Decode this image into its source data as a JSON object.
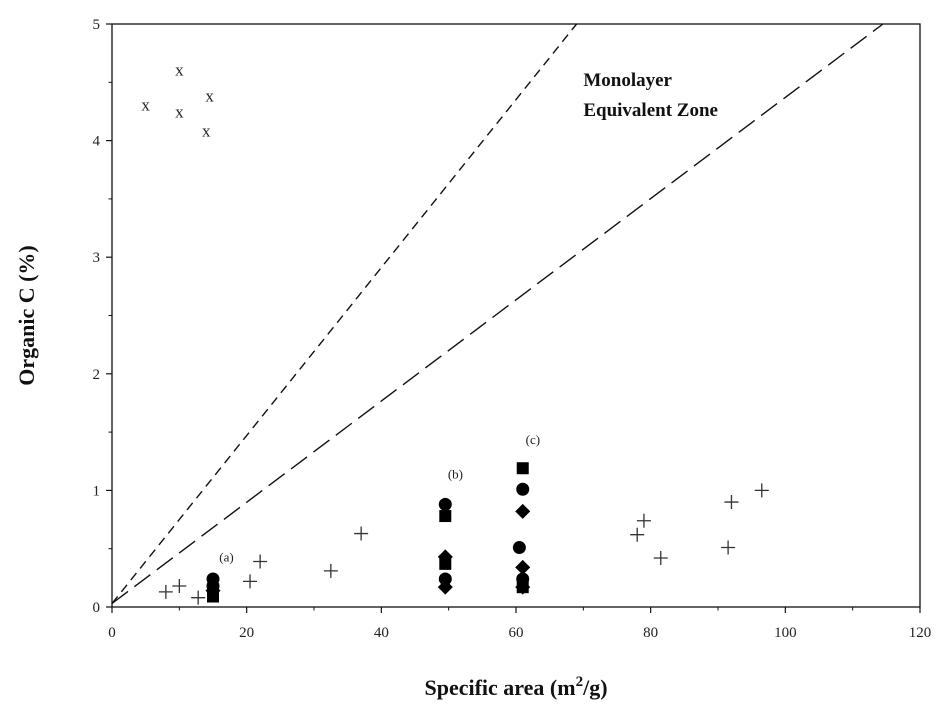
{
  "chart_data": {
    "type": "scatter",
    "title": "",
    "xlabel": "Specific area (m",
    "xlabel_sup": "2",
    "xlabel_tail": "/g)",
    "ylabel": "Organic C (%)",
    "xlim": [
      0,
      120
    ],
    "ylim": [
      0,
      5
    ],
    "xticks": [
      "0",
      "20",
      "40",
      "60",
      "80",
      "100",
      "120"
    ],
    "yticks": [
      "0",
      "1",
      "2",
      "3",
      "4",
      "5"
    ],
    "grid": false,
    "annotation": {
      "line1": "Monolayer",
      "line2": "Equivalent Zone",
      "x": 70,
      "y": 4.47
    },
    "lines": [
      {
        "name": "",
        "style": "short-dash",
        "points": [
          [
            0,
            0.03
          ],
          [
            69,
            5.0
          ]
        ]
      },
      {
        "name": "",
        "style": "long-dash",
        "points": [
          [
            0,
            0.03
          ],
          [
            114.5,
            5.0
          ]
        ]
      }
    ],
    "group_labels": [
      {
        "text": "(a)",
        "x": 17,
        "y": 0.39
      },
      {
        "text": "(b)",
        "x": 51,
        "y": 1.1
      },
      {
        "text": "(c)",
        "x": 62.5,
        "y": 1.4
      }
    ],
    "series": [
      {
        "name": "",
        "marker": "x",
        "color": "#222222",
        "points": [
          [
            5,
            4.3
          ],
          [
            10,
            4.6
          ],
          [
            10,
            4.24
          ],
          [
            14.5,
            4.38
          ],
          [
            14,
            4.08
          ]
        ]
      },
      {
        "name": "",
        "marker": "plus",
        "color": "#333333",
        "points": [
          [
            8,
            0.13
          ],
          [
            10,
            0.18
          ],
          [
            12.8,
            0.08
          ],
          [
            20.5,
            0.22
          ],
          [
            22,
            0.39
          ],
          [
            32.5,
            0.31
          ],
          [
            37,
            0.63
          ],
          [
            78,
            0.62
          ],
          [
            79,
            0.74
          ],
          [
            81.5,
            0.42
          ],
          [
            91.5,
            0.51
          ],
          [
            92,
            0.9
          ],
          [
            96.5,
            1.0
          ]
        ]
      },
      {
        "name": "",
        "marker": "circle",
        "color": "#000000",
        "points": [
          [
            15,
            0.24
          ],
          [
            15,
            0.18
          ],
          [
            49.5,
            0.88
          ],
          [
            49.5,
            0.24
          ],
          [
            60.5,
            0.51
          ],
          [
            61,
            1.01
          ],
          [
            61,
            0.24
          ]
        ]
      },
      {
        "name": "",
        "marker": "square",
        "color": "#000000",
        "points": [
          [
            15,
            0.09
          ],
          [
            49.5,
            0.78
          ],
          [
            49.5,
            0.37
          ],
          [
            61,
            1.19
          ],
          [
            61,
            0.17
          ]
        ]
      },
      {
        "name": "",
        "marker": "diamond",
        "color": "#000000",
        "points": [
          [
            15,
            0.14
          ],
          [
            49.5,
            0.43
          ],
          [
            49.5,
            0.17
          ],
          [
            61,
            0.82
          ],
          [
            61,
            0.34
          ],
          [
            61,
            0.17
          ]
        ]
      }
    ]
  }
}
